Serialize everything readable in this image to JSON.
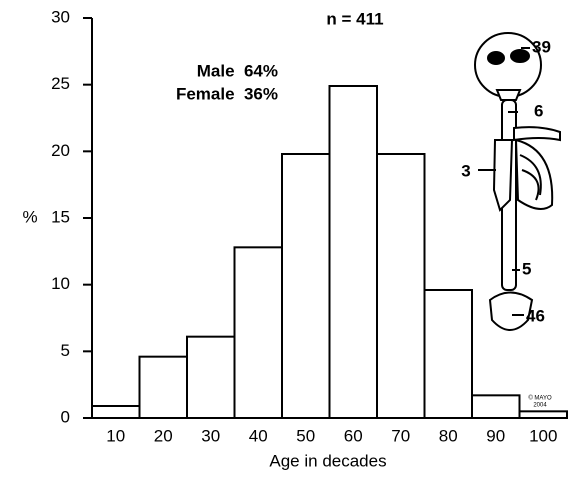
{
  "chart_data": {
    "type": "bar",
    "categories": [
      "10",
      "20",
      "30",
      "40",
      "50",
      "60",
      "70",
      "80",
      "90",
      "100"
    ],
    "values": [
      0.9,
      4.6,
      6.1,
      12.8,
      19.8,
      24.9,
      19.8,
      9.6,
      1.7,
      0.5
    ],
    "color": "#ffffff",
    "ylim": [
      0,
      30
    ],
    "yticks": [
      0,
      5,
      10,
      15,
      20,
      25,
      30
    ],
    "ylabel": "%",
    "xlabel": "Age in decades",
    "annotations": [
      "n = 411",
      "Male  64%",
      "Female  36%"
    ],
    "skeleton_labels": [
      "39",
      "6",
      "3",
      "5",
      "46"
    ],
    "copyright": [
      "© MAYO",
      "2004"
    ]
  }
}
